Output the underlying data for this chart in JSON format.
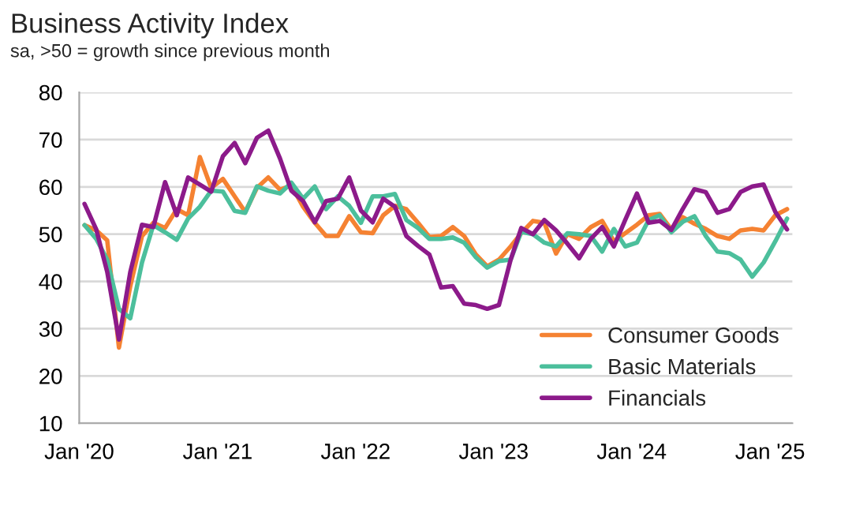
{
  "chart_data": {
    "type": "line",
    "title": "Business Activity Index",
    "subtitle": "sa, >50 = growth since previous month",
    "x": [
      "2020-01-15",
      "2020-02-15",
      "2020-03-15",
      "2020-04-15",
      "2020-05-15",
      "2020-06-15",
      "2020-07-15",
      "2020-08-15",
      "2020-09-15",
      "2020-10-15",
      "2020-11-15",
      "2020-12-15",
      "2021-01-15",
      "2021-02-15",
      "2021-03-15",
      "2021-04-15",
      "2021-05-15",
      "2021-06-15",
      "2021-07-15",
      "2021-08-15",
      "2021-09-15",
      "2021-10-15",
      "2021-11-15",
      "2021-12-15",
      "2022-01-15",
      "2022-02-15",
      "2022-03-15",
      "2022-04-15",
      "2022-05-15",
      "2022-06-15",
      "2022-07-15",
      "2022-08-15",
      "2022-09-15",
      "2022-10-15",
      "2022-11-15",
      "2022-12-15",
      "2023-01-15",
      "2023-02-15",
      "2023-03-15",
      "2023-04-15",
      "2023-05-15",
      "2023-06-15",
      "2023-07-15",
      "2023-08-15",
      "2023-09-15",
      "2023-10-15",
      "2023-11-15",
      "2023-12-15",
      "2024-01-15",
      "2024-02-15",
      "2024-03-15",
      "2024-04-15",
      "2024-05-15",
      "2024-06-15",
      "2024-07-15",
      "2024-08-15",
      "2024-09-15",
      "2024-10-15",
      "2024-11-15",
      "2024-12-15",
      "2025-01-15",
      "2025-02-15"
    ],
    "series": [
      {
        "name": "Consumer Goods",
        "color": "#f58232",
        "values": [
          51.9,
          50.8,
          48.7,
          26,
          39,
          49.6,
          52.4,
          51.3,
          55.3,
          54,
          66.3,
          59.8,
          61.7,
          58,
          54.7,
          59.8,
          62,
          59.4,
          60.3,
          55.8,
          52.4,
          49.6,
          49.6,
          53.8,
          50.4,
          50.2,
          54,
          56,
          55.3,
          52.4,
          49.4,
          49.6,
          51.5,
          49.6,
          45.7,
          43.2,
          44.6,
          47.4,
          50.2,
          52.8,
          52.4,
          45.9,
          50,
          49,
          51.5,
          52.8,
          48.5,
          50.2,
          52,
          54,
          54.3,
          51,
          53.6,
          52.2,
          51.1,
          49.6,
          49,
          50.8,
          51.1,
          50.8,
          54,
          55.3
        ]
      },
      {
        "name": "Basic Materials",
        "color": "#4cbf9c",
        "values": [
          51.9,
          49,
          44.6,
          34.2,
          32.2,
          44,
          51.9,
          50.4,
          48.8,
          53.3,
          55.8,
          59.2,
          59,
          54.9,
          54.5,
          60.1,
          59.2,
          58.6,
          60.9,
          57.5,
          60.1,
          55.3,
          58,
          56,
          52.4,
          58,
          58,
          58.5,
          53,
          51.3,
          49,
          49,
          49.3,
          48.2,
          45.1,
          42.9,
          44.3,
          44.6,
          50.5,
          50,
          48.2,
          47.4,
          50.2,
          50,
          49.6,
          46.3,
          51.1,
          47.4,
          48.2,
          53,
          54,
          50.4,
          52.6,
          53.8,
          49.6,
          46.3,
          46,
          44.6,
          41,
          44,
          48.5,
          53.3
        ]
      },
      {
        "name": "Financials",
        "color": "#8c1a8a",
        "values": [
          56.4,
          51,
          42,
          27.7,
          42,
          52,
          51.5,
          61,
          54,
          62,
          60.5,
          59,
          66.5,
          69.3,
          65,
          70.4,
          71.9,
          66,
          59.2,
          57,
          52.5,
          57,
          57.5,
          62,
          55,
          52.5,
          57.5,
          55.8,
          49.6,
          47.5,
          45.7,
          38.7,
          39,
          35.3,
          35,
          34.2,
          35,
          44.6,
          51.3,
          50,
          53,
          50.8,
          48,
          44.9,
          49,
          51.5,
          47.4,
          53,
          58.6,
          52.4,
          52.8,
          50.9,
          55.3,
          59.5,
          58.9,
          54.5,
          55.3,
          58.9,
          60.1,
          60.5,
          54.7,
          51
        ]
      }
    ],
    "xlim": [
      "2020-01-01",
      "2025-03-01"
    ],
    "xticks": [
      {
        "value": "2020-01-01",
        "label": "Jan '20"
      },
      {
        "value": "2021-01-01",
        "label": "Jan '21"
      },
      {
        "value": "2022-01-01",
        "label": "Jan '22"
      },
      {
        "value": "2023-01-01",
        "label": "Jan '23"
      },
      {
        "value": "2024-01-01",
        "label": "Jan '24"
      },
      {
        "value": "2025-01-01",
        "label": "Jan '25"
      }
    ],
    "ylim": [
      10,
      80
    ],
    "yticks": [
      10,
      20,
      30,
      40,
      50,
      60,
      70,
      80
    ],
    "grid": "y",
    "legend": "bottom right",
    "marker": "none",
    "line_style": "solid"
  }
}
